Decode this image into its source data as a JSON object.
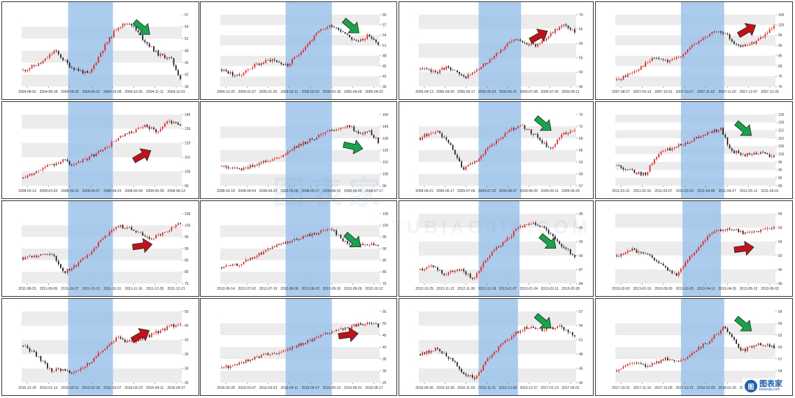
{
  "watermark": {
    "text": "图表家",
    "subtext": "TUBIAOJIA.COM"
  },
  "logo": {
    "mark": "图",
    "text": "图表家",
    "subtext": "tubiaojia.com"
  },
  "colors": {
    "up": "#e02020",
    "down": "#1a1a1a",
    "highlight": "#9ec3ea",
    "arrow_green": "#1aa34a",
    "arrow_red": "#c0121a",
    "band": "#ececec"
  },
  "chart_data": [
    {
      "type": "candlestick",
      "ylim": [
        39,
        57
      ],
      "yticks": [
        "39",
        "42",
        "45",
        "48",
        "51",
        "54",
        "57"
      ],
      "xticks": [
        "2004-08-02",
        "2004-08-18",
        "2004-09-03",
        "2004-09-22",
        "2004-10-08",
        "2004-10-26",
        "2004-11-11",
        "2004-12-01"
      ],
      "highlight": [
        0.29,
        0.57
      ],
      "arrow": "green-down",
      "arrow_at": [
        0.75,
        0.18
      ],
      "seed": 11,
      "shape": [
        [
          0,
          43
        ],
        [
          0.12,
          45
        ],
        [
          0.2,
          48
        ],
        [
          0.3,
          44
        ],
        [
          0.42,
          42
        ],
        [
          0.5,
          48
        ],
        [
          0.6,
          54
        ],
        [
          0.68,
          55
        ],
        [
          0.76,
          51
        ],
        [
          0.86,
          47
        ],
        [
          0.94,
          46
        ],
        [
          1,
          41
        ]
      ]
    },
    {
      "type": "candlestick",
      "ylim": [
        39,
        60
      ],
      "yticks": [
        "39",
        "42",
        "45",
        "48",
        "51",
        "54",
        "57",
        "60"
      ],
      "xticks": [
        "2004-12-20",
        "2005-01-07",
        "2005-01-26",
        "2005-02-11",
        "2005-03-02",
        "2005-03-18",
        "2005-04-06",
        "2005-04-22"
      ],
      "highlight": [
        0.41,
        0.7
      ],
      "arrow": "green-down",
      "arrow_at": [
        0.82,
        0.16
      ],
      "seed": 23,
      "shape": [
        [
          0,
          44
        ],
        [
          0.1,
          42
        ],
        [
          0.2,
          45
        ],
        [
          0.32,
          47
        ],
        [
          0.42,
          45
        ],
        [
          0.52,
          50
        ],
        [
          0.62,
          55
        ],
        [
          0.7,
          57
        ],
        [
          0.78,
          55
        ],
        [
          0.86,
          52
        ],
        [
          0.94,
          54
        ],
        [
          1,
          51
        ]
      ]
    },
    {
      "type": "candlestick",
      "ylim": [
        45,
        70
      ],
      "yticks": [
        "45",
        "50",
        "55",
        "60",
        "65",
        "70"
      ],
      "xticks": [
        "2005-04-13",
        "2005-04-29",
        "2005-05-17",
        "2005-06-03",
        "2005-06-21",
        "2005-07-08",
        "2005-07-26",
        "2005-08-11"
      ],
      "highlight": [
        0.38,
        0.65
      ],
      "arrow": "red-up",
      "arrow_at": [
        0.76,
        0.3
      ],
      "seed": 37,
      "shape": [
        [
          0,
          51
        ],
        [
          0.1,
          50
        ],
        [
          0.18,
          52
        ],
        [
          0.28,
          48
        ],
        [
          0.38,
          51
        ],
        [
          0.5,
          57
        ],
        [
          0.6,
          61
        ],
        [
          0.66,
          61
        ],
        [
          0.74,
          59
        ],
        [
          0.84,
          63
        ],
        [
          0.93,
          67
        ],
        [
          1,
          64
        ]
      ]
    },
    {
      "type": "candlestick",
      "ylim": [
        70,
        105
      ],
      "yticks": [
        "70",
        "75",
        "80",
        "85",
        "90",
        "95",
        "100",
        "105"
      ],
      "xticks": [
        "2007-08-27",
        "2007-09-13",
        "2007-10-01",
        "2007-10-17",
        "2007-11-02",
        "2007-11-20",
        "2007-12-07",
        "2007-12-26"
      ],
      "highlight": [
        0.41,
        0.68
      ],
      "arrow": "red-up",
      "arrow_at": [
        0.82,
        0.22
      ],
      "seed": 41,
      "shape": [
        [
          0,
          73
        ],
        [
          0.12,
          78
        ],
        [
          0.24,
          84
        ],
        [
          0.34,
          82
        ],
        [
          0.42,
          86
        ],
        [
          0.52,
          92
        ],
        [
          0.62,
          97
        ],
        [
          0.7,
          95
        ],
        [
          0.78,
          89
        ],
        [
          0.86,
          91
        ],
        [
          0.94,
          95
        ],
        [
          1,
          99
        ]
      ]
    },
    {
      "type": "candlestick",
      "ylim": [
        90,
        140
      ],
      "yticks": [
        "90",
        "100",
        "110",
        "120",
        "130",
        "140"
      ],
      "xticks": [
        "2008-02-13",
        "2008-03-03",
        "2008-03-19",
        "2008-04-07",
        "2008-04-23",
        "2008-05-09",
        "2008-05-28",
        "2008-06-13"
      ],
      "highlight": [
        0.29,
        0.57
      ],
      "arrow": "red-up",
      "arrow_at": [
        0.75,
        0.58
      ],
      "seed": 53,
      "shape": [
        [
          0,
          96
        ],
        [
          0.14,
          103
        ],
        [
          0.26,
          108
        ],
        [
          0.32,
          104
        ],
        [
          0.42,
          110
        ],
        [
          0.52,
          116
        ],
        [
          0.6,
          123
        ],
        [
          0.7,
          128
        ],
        [
          0.78,
          132
        ],
        [
          0.86,
          128
        ],
        [
          0.92,
          136
        ],
        [
          1,
          133
        ]
      ]
    },
    {
      "type": "candlestick",
      "ylim": [
        90,
        150
      ],
      "yticks": [
        "90",
        "100",
        "110",
        "120",
        "130",
        "140",
        "150"
      ],
      "xticks": [
        "2008-03-18",
        "2008-04-04",
        "2008-04-22",
        "2008-05-08",
        "2008-05-27",
        "2008-06-12",
        "2008-06-30",
        "2008-07-17"
      ],
      "highlight": [
        0.41,
        0.7
      ],
      "arrow": "green-right",
      "arrow_at": [
        0.83,
        0.45
      ],
      "seed": 61,
      "shape": [
        [
          0,
          106
        ],
        [
          0.12,
          103
        ],
        [
          0.24,
          109
        ],
        [
          0.36,
          114
        ],
        [
          0.46,
          122
        ],
        [
          0.56,
          128
        ],
        [
          0.66,
          134
        ],
        [
          0.74,
          138
        ],
        [
          0.82,
          141
        ],
        [
          0.88,
          132
        ],
        [
          0.94,
          136
        ],
        [
          1,
          127
        ]
      ]
    },
    {
      "type": "candlestick",
      "ylim": [
        57,
        75
      ],
      "yticks": [
        "57",
        "60",
        "63",
        "66",
        "69",
        "72",
        "75"
      ],
      "xticks": [
        "2009-06-01",
        "2009-06-17",
        "2009-07-06",
        "2009-07-22",
        "2009-08-07",
        "2009-08-25",
        "2009-09-11",
        "2009-09-29"
      ],
      "highlight": [
        0.38,
        0.65
      ],
      "arrow": "green-down",
      "arrow_at": [
        0.79,
        0.13
      ],
      "seed": 73,
      "shape": [
        [
          0,
          69
        ],
        [
          0.1,
          71
        ],
        [
          0.2,
          67
        ],
        [
          0.28,
          61
        ],
        [
          0.38,
          64
        ],
        [
          0.48,
          68
        ],
        [
          0.58,
          71
        ],
        [
          0.66,
          72
        ],
        [
          0.74,
          70
        ],
        [
          0.84,
          66
        ],
        [
          0.92,
          70
        ],
        [
          1,
          71
        ]
      ]
    },
    {
      "type": "candlestick",
      "ylim": [
        80,
        125
      ],
      "yticks": [
        "80",
        "85",
        "90",
        "95",
        "100",
        "105",
        "110",
        "115",
        "120",
        "125"
      ],
      "xticks": [
        "2011-01-31",
        "2011-02-16",
        "2011-03-07",
        "2011-03-23",
        "2011-04-08",
        "2011-04-27",
        "2011-05-13",
        "2011-06-01"
      ],
      "highlight": [
        0.41,
        0.68
      ],
      "arrow": "green-down",
      "arrow_at": [
        0.8,
        0.2
      ],
      "seed": 83,
      "shape": [
        [
          0,
          93
        ],
        [
          0.1,
          89
        ],
        [
          0.18,
          87
        ],
        [
          0.26,
          100
        ],
        [
          0.36,
          104
        ],
        [
          0.46,
          108
        ],
        [
          0.58,
          113
        ],
        [
          0.66,
          116
        ],
        [
          0.72,
          103
        ],
        [
          0.8,
          99
        ],
        [
          0.9,
          101
        ],
        [
          1,
          98
        ]
      ]
    },
    {
      "type": "candlestick",
      "ylim": [
        75,
        105
      ],
      "yticks": [
        "75",
        "80",
        "85",
        "90",
        "95",
        "100",
        "105"
      ],
      "xticks": [
        "2011-08-23",
        "2011-09-09",
        "2011-09-27",
        "2011-10-13",
        "2011-10-31",
        "2011-11-16",
        "2011-12-05",
        "2011-12-21"
      ],
      "highlight": [
        0.29,
        0.57
      ],
      "arrow": "red-right",
      "arrow_at": [
        0.75,
        0.46
      ],
      "seed": 97,
      "shape": [
        [
          0,
          86
        ],
        [
          0.1,
          87
        ],
        [
          0.18,
          88
        ],
        [
          0.26,
          80
        ],
        [
          0.32,
          82
        ],
        [
          0.42,
          88
        ],
        [
          0.52,
          95
        ],
        [
          0.6,
          100
        ],
        [
          0.7,
          98
        ],
        [
          0.8,
          94
        ],
        [
          0.9,
          97
        ],
        [
          1,
          101
        ]
      ]
    },
    {
      "type": "candlestick",
      "ylim": [
        75,
        105
      ],
      "yticks": [
        "75",
        "80",
        "85",
        "90",
        "95",
        "100",
        "105"
      ],
      "xticks": [
        "2012-06-14",
        "2012-07-02",
        "2012-07-19",
        "2012-08-06",
        "2012-08-22",
        "2012-09-10",
        "2012-09-26",
        "2012-10-12"
      ],
      "highlight": [
        0.41,
        0.69
      ],
      "arrow": "green-down",
      "arrow_at": [
        0.83,
        0.38
      ],
      "seed": 101,
      "shape": [
        [
          0,
          82
        ],
        [
          0.1,
          83
        ],
        [
          0.2,
          86
        ],
        [
          0.3,
          90
        ],
        [
          0.4,
          92
        ],
        [
          0.52,
          95
        ],
        [
          0.62,
          97
        ],
        [
          0.7,
          99
        ],
        [
          0.78,
          93
        ],
        [
          0.86,
          91
        ],
        [
          0.94,
          92
        ],
        [
          1,
          91
        ]
      ]
    },
    {
      "type": "candlestick",
      "ylim": [
        84,
        99
      ],
      "yticks": [
        "84",
        "87",
        "90",
        "93",
        "96",
        "99"
      ],
      "xticks": [
        "2012-10-29",
        "2012-11-13",
        "2012-11-30",
        "2012-12-18",
        "2013-01-07",
        "2013-01-24",
        "2013-02-11",
        "2013-02-28"
      ],
      "highlight": [
        0.38,
        0.64
      ],
      "arrow": "green-down",
      "arrow_at": [
        0.82,
        0.4
      ],
      "seed": 113,
      "shape": [
        [
          0,
          87
        ],
        [
          0.08,
          88
        ],
        [
          0.16,
          86
        ],
        [
          0.26,
          87
        ],
        [
          0.34,
          85
        ],
        [
          0.44,
          90
        ],
        [
          0.54,
          93
        ],
        [
          0.64,
          96
        ],
        [
          0.72,
          97
        ],
        [
          0.8,
          96
        ],
        [
          0.88,
          93
        ],
        [
          1,
          90
        ]
      ]
    },
    {
      "type": "candlestick",
      "ylim": [
        40,
        65
      ],
      "yticks": [
        "40",
        "45",
        "50",
        "55",
        "60",
        "65"
      ],
      "xticks": [
        "2013-02-02",
        "2013-02-19",
        "2013-03-09",
        "2013-03-25",
        "2013-04-13",
        "2013-04-29",
        "2013-05-15",
        "2013-06-03"
      ],
      "highlight": [
        0.42,
        0.66
      ],
      "arrow": "red-right",
      "arrow_at": [
        0.8,
        0.5
      ],
      "seed": 127,
      "shape": [
        [
          0,
          50
        ],
        [
          0.1,
          52
        ],
        [
          0.2,
          50
        ],
        [
          0.3,
          46
        ],
        [
          0.38,
          43
        ],
        [
          0.46,
          49
        ],
        [
          0.56,
          56
        ],
        [
          0.64,
          59
        ],
        [
          0.72,
          60
        ],
        [
          0.8,
          58
        ],
        [
          0.9,
          59
        ],
        [
          1,
          60
        ]
      ]
    },
    {
      "type": "candlestick",
      "ylim": [
        25,
        50
      ],
      "yticks": [
        "25",
        "30",
        "35",
        "40",
        "45",
        "50"
      ],
      "xticks": [
        "2015-12-24",
        "2016-01-13",
        "2016-02-01",
        "2016-02-18",
        "2016-03-07",
        "2016-03-23",
        "2016-04-11",
        "2016-04-27"
      ],
      "highlight": [
        0.29,
        0.57
      ],
      "arrow": "red-up",
      "arrow_at": [
        0.74,
        0.34
      ],
      "seed": 131,
      "shape": [
        [
          0,
          38
        ],
        [
          0.1,
          34
        ],
        [
          0.18,
          29
        ],
        [
          0.26,
          30
        ],
        [
          0.32,
          28
        ],
        [
          0.42,
          32
        ],
        [
          0.52,
          37
        ],
        [
          0.6,
          41
        ],
        [
          0.68,
          39
        ],
        [
          0.78,
          41
        ],
        [
          0.9,
          44
        ],
        [
          1,
          46
        ]
      ]
    },
    {
      "type": "candlestick",
      "ylim": [
        25,
        55
      ],
      "yticks": [
        "25",
        "30",
        "35",
        "40",
        "45",
        "50",
        "55"
      ],
      "xticks": [
        "2016-02-28",
        "2016-03-07",
        "2016-03-23",
        "2016-04-11",
        "2016-04-27",
        "2016-05-13",
        "2016-06-01",
        "2016-06-17"
      ],
      "highlight": [
        0.41,
        0.7
      ],
      "arrow": "red-right",
      "arrow_at": [
        0.8,
        0.33
      ],
      "seed": 139,
      "shape": [
        [
          0,
          31
        ],
        [
          0.1,
          33
        ],
        [
          0.2,
          35
        ],
        [
          0.3,
          37
        ],
        [
          0.4,
          38
        ],
        [
          0.5,
          41
        ],
        [
          0.6,
          44
        ],
        [
          0.7,
          46
        ],
        [
          0.8,
          48
        ],
        [
          0.9,
          50
        ],
        [
          1,
          49
        ]
      ]
    },
    {
      "type": "candlestick",
      "ylim": [
        42,
        57
      ],
      "yticks": [
        "42",
        "45",
        "48",
        "51",
        "54",
        "57"
      ],
      "xticks": [
        "2016-09-30",
        "2016-10-18",
        "2016-11-03",
        "2016-11-21",
        "2016-12-08",
        "2016-12-27",
        "2017-01-13",
        "2017-02-01"
      ],
      "highlight": [
        0.38,
        0.63
      ],
      "arrow": "green-down",
      "arrow_at": [
        0.79,
        0.14
      ],
      "seed": 149,
      "shape": [
        [
          0,
          48
        ],
        [
          0.1,
          49
        ],
        [
          0.2,
          47
        ],
        [
          0.28,
          44
        ],
        [
          0.36,
          43
        ],
        [
          0.46,
          48
        ],
        [
          0.56,
          51
        ],
        [
          0.64,
          53
        ],
        [
          0.72,
          54
        ],
        [
          0.8,
          53
        ],
        [
          0.9,
          54
        ],
        [
          1,
          52
        ]
      ]
    },
    {
      "type": "candlestick",
      "ylim": [
        51,
        69
      ],
      "yticks": [
        "51",
        "54",
        "57",
        "60",
        "63",
        "66",
        "69"
      ],
      "xticks": [
        "2017-10-31",
        "2017-11-16",
        "2017-12-05",
        "2017-12-21",
        "2018-01-09",
        "2018-01-25",
        "2018-02-13",
        "2018-03-01"
      ],
      "highlight": [
        0.41,
        0.68
      ],
      "arrow": "green-down",
      "arrow_at": [
        0.8,
        0.18
      ],
      "seed": 157,
      "shape": [
        [
          0,
          54
        ],
        [
          0.1,
          56
        ],
        [
          0.2,
          55
        ],
        [
          0.3,
          57
        ],
        [
          0.4,
          56
        ],
        [
          0.5,
          59
        ],
        [
          0.6,
          62
        ],
        [
          0.68,
          65
        ],
        [
          0.74,
          62
        ],
        [
          0.8,
          59
        ],
        [
          0.9,
          61
        ],
        [
          1,
          60
        ]
      ]
    }
  ]
}
